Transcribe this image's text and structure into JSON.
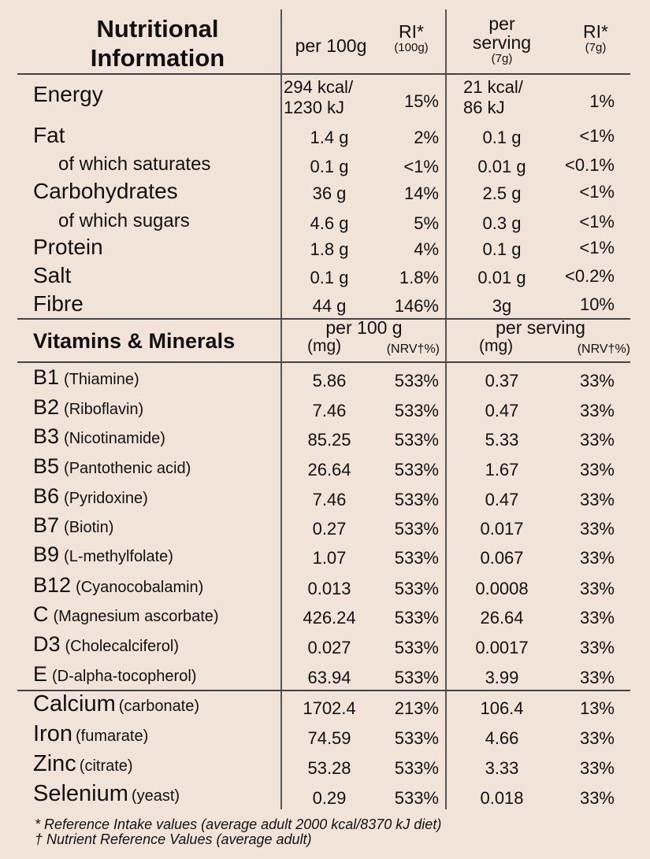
{
  "header": {
    "title_line1": "Nutritional",
    "title_line2": "Information",
    "per100g": "per 100g",
    "ri": "RI*",
    "ri_100g_sub": "(100g)",
    "per_serving_line1": "per",
    "per_serving_line2": "serving",
    "per_serving_sub": "(7g)",
    "ri_serving": "RI*",
    "ri_serving_sub": "(7g)"
  },
  "nutrition_rows": [
    {
      "label": "Energy",
      "sub": false,
      "per100": "294 kcal/\n1230 kJ",
      "ri100": "15%",
      "perServ": "21 kcal/\n86 kJ",
      "riServ": "1%"
    },
    {
      "label": "Fat",
      "sub": false,
      "per100": "1.4 g",
      "ri100": "2%",
      "perServ": "0.1 g",
      "riServ": "<1%"
    },
    {
      "label": "of which saturates",
      "sub": true,
      "per100": "0.1 g",
      "ri100": "<1%",
      "perServ": "0.01 g",
      "riServ": "<0.1%"
    },
    {
      "label": "Carbohydrates",
      "sub": false,
      "per100": "36 g",
      "ri100": "14%",
      "perServ": "2.5 g",
      "riServ": "<1%"
    },
    {
      "label": "of which sugars",
      "sub": true,
      "per100": "4.6 g",
      "ri100": "5%",
      "perServ": "0.3 g",
      "riServ": "<1%"
    },
    {
      "label": "Protein",
      "sub": false,
      "per100": "1.8 g",
      "ri100": "4%",
      "perServ": "0.1 g",
      "riServ": "<1%"
    },
    {
      "label": "Salt",
      "sub": false,
      "per100": "0.1 g",
      "ri100": "1.8%",
      "perServ": "0.01 g",
      "riServ": "<0.2%"
    },
    {
      "label": "Fibre",
      "sub": false,
      "per100": "44 g",
      "ri100": "146%",
      "perServ": "3g",
      "riServ": "10%"
    }
  ],
  "vitamins_header": {
    "title": "Vitamins & Minerals",
    "per100g": "per 100 g",
    "per100g_mg": "(mg)",
    "per100g_nrv": "(NRV†%)",
    "perServing": "per serving",
    "perServing_mg": "(mg)",
    "perServing_nrv": "(NRV†%)"
  },
  "vitamin_rows": [
    {
      "code": "B1",
      "desc": "(Thiamine)",
      "per100": "5.86",
      "nrv100": "533%",
      "perServ": "0.37",
      "nrvServ": "33%"
    },
    {
      "code": "B2",
      "desc": "(Riboflavin)",
      "per100": "7.46",
      "nrv100": "533%",
      "perServ": "0.47",
      "nrvServ": "33%"
    },
    {
      "code": "B3",
      "desc": "(Nicotinamide)",
      "per100": "85.25",
      "nrv100": "533%",
      "perServ": "5.33",
      "nrvServ": "33%"
    },
    {
      "code": "B5",
      "desc": "(Pantothenic acid)",
      "per100": "26.64",
      "nrv100": "533%",
      "perServ": "1.67",
      "nrvServ": "33%"
    },
    {
      "code": "B6",
      "desc": "(Pyridoxine)",
      "per100": "7.46",
      "nrv100": "533%",
      "perServ": "0.47",
      "nrvServ": "33%"
    },
    {
      "code": "B7",
      "desc": "(Biotin)",
      "per100": "0.27",
      "nrv100": "533%",
      "perServ": "0.017",
      "nrvServ": "33%"
    },
    {
      "code": "B9",
      "desc": "(L-methylfolate)",
      "per100": "1.07",
      "nrv100": "533%",
      "perServ": "0.067",
      "nrvServ": "33%"
    },
    {
      "code": "B12",
      "desc": "(Cyanocobalamin)",
      "per100": "0.013",
      "nrv100": "533%",
      "perServ": "0.0008",
      "nrvServ": "33%"
    },
    {
      "code": "C",
      "desc": "(Magnesium ascorbate)",
      "per100": "426.24",
      "nrv100": "533%",
      "perServ": "26.64",
      "nrvServ": "33%"
    },
    {
      "code": "D3",
      "desc": "(Cholecalciferol)",
      "per100": "0.027",
      "nrv100": "533%",
      "perServ": "0.0017",
      "nrvServ": "33%"
    },
    {
      "code": "E",
      "desc": "(D-alpha-tocopherol)",
      "per100": "63.94",
      "nrv100": "533%",
      "perServ": "3.99",
      "nrvServ": "33%"
    }
  ],
  "mineral_rows": [
    {
      "code": "Calcium",
      "desc": "(carbonate)",
      "per100": "1702.4",
      "nrv100": "213%",
      "perServ": "106.4",
      "nrvServ": "13%"
    },
    {
      "code": "Iron",
      "desc": "(fumarate)",
      "per100": "74.59",
      "nrv100": "533%",
      "perServ": "4.66",
      "nrvServ": "33%"
    },
    {
      "code": "Zinc",
      "desc": "(citrate)",
      "per100": "53.28",
      "nrv100": "533%",
      "perServ": "3.33",
      "nrvServ": "33%"
    },
    {
      "code": "Selenium",
      "desc": "(yeast)",
      "per100": "0.29",
      "nrv100": "533%",
      "perServ": "0.018",
      "nrvServ": "33%"
    }
  ],
  "footnotes": {
    "ri": "* Reference Intake values (average adult 2000 kcal/8370 kJ diet)",
    "nrv": "† Nutrient Reference Values (average adult)"
  }
}
